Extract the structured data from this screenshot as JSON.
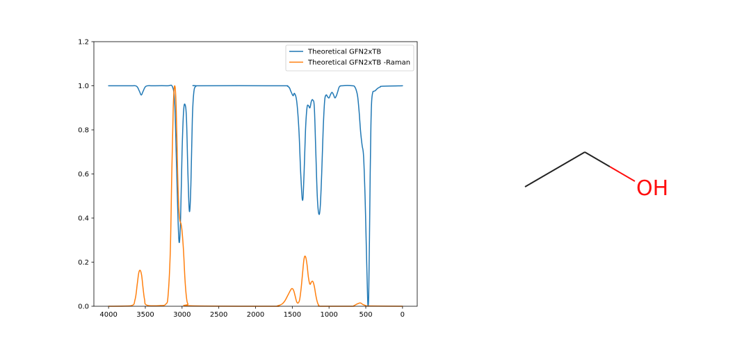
{
  "chart_data": {
    "type": "line",
    "title": "",
    "xlabel": "",
    "ylabel": "",
    "xlim": [
      4200,
      -200
    ],
    "ylim": [
      0,
      1.2
    ],
    "x_inverted": true,
    "x_ticks": [
      4000,
      3500,
      3000,
      2500,
      2000,
      1500,
      1000,
      500,
      0
    ],
    "x_tick_labels": [
      "4000",
      "3500",
      "3000",
      "2500",
      "2000",
      "1500",
      "1000",
      "500",
      "0"
    ],
    "y_ticks": [
      0.0,
      0.2,
      0.4,
      0.6,
      0.8,
      1.0,
      1.2
    ],
    "y_tick_labels": [
      "0.0",
      "0.2",
      "0.4",
      "0.6",
      "0.8",
      "1.0",
      "1.2"
    ],
    "grid": false,
    "legend": {
      "placement": "top-right"
    },
    "series": [
      {
        "name": "Theoretical GFN2xTB",
        "color": "#1f77b4",
        "points": [
          [
            4000,
            1.0
          ],
          [
            3700,
            1.0
          ],
          [
            3620,
            0.998
          ],
          [
            3580,
            0.975
          ],
          [
            3555,
            0.958
          ],
          [
            3530,
            0.975
          ],
          [
            3490,
            0.998
          ],
          [
            3400,
            1.0
          ],
          [
            3200,
            1.0
          ],
          [
            3130,
            0.995
          ],
          [
            3100,
            0.92
          ],
          [
            3080,
            0.7
          ],
          [
            3060,
            0.45
          ],
          [
            3040,
            0.29
          ],
          [
            3020,
            0.4
          ],
          [
            3000,
            0.7
          ],
          [
            2980,
            0.88
          ],
          [
            2960,
            0.915
          ],
          [
            2940,
            0.85
          ],
          [
            2920,
            0.6
          ],
          [
            2900,
            0.43
          ],
          [
            2880,
            0.55
          ],
          [
            2860,
            0.85
          ],
          [
            2840,
            0.97
          ],
          [
            2810,
            0.998
          ],
          [
            2750,
            1.0
          ],
          [
            1700,
            1.0
          ],
          [
            1560,
            0.997
          ],
          [
            1520,
            0.975
          ],
          [
            1490,
            0.955
          ],
          [
            1470,
            0.965
          ],
          [
            1440,
            0.93
          ],
          [
            1410,
            0.8
          ],
          [
            1385,
            0.6
          ],
          [
            1360,
            0.48
          ],
          [
            1340,
            0.6
          ],
          [
            1320,
            0.8
          ],
          [
            1300,
            0.9
          ],
          [
            1280,
            0.91
          ],
          [
            1260,
            0.9
          ],
          [
            1240,
            0.93
          ],
          [
            1220,
            0.935
          ],
          [
            1200,
            0.9
          ],
          [
            1180,
            0.7
          ],
          [
            1160,
            0.5
          ],
          [
            1140,
            0.42
          ],
          [
            1120,
            0.45
          ],
          [
            1100,
            0.6
          ],
          [
            1080,
            0.8
          ],
          [
            1060,
            0.93
          ],
          [
            1040,
            0.958
          ],
          [
            1020,
            0.95
          ],
          [
            1000,
            0.945
          ],
          [
            980,
            0.96
          ],
          [
            960,
            0.97
          ],
          [
            940,
            0.96
          ],
          [
            920,
            0.945
          ],
          [
            900,
            0.955
          ],
          [
            880,
            0.975
          ],
          [
            860,
            0.995
          ],
          [
            820,
            1.0
          ],
          [
            680,
            1.0
          ],
          [
            650,
            0.995
          ],
          [
            630,
            0.98
          ],
          [
            610,
            0.95
          ],
          [
            590,
            0.88
          ],
          [
            570,
            0.79
          ],
          [
            550,
            0.73
          ],
          [
            530,
            0.68
          ],
          [
            510,
            0.5
          ],
          [
            495,
            0.3
          ],
          [
            480,
            0.1
          ],
          [
            470,
            0.0
          ],
          [
            460,
            0.05
          ],
          [
            450,
            0.3
          ],
          [
            440,
            0.6
          ],
          [
            430,
            0.82
          ],
          [
            420,
            0.93
          ],
          [
            405,
            0.97
          ],
          [
            390,
            0.975
          ],
          [
            370,
            0.978
          ],
          [
            350,
            0.985
          ],
          [
            330,
            0.99
          ],
          [
            300,
            0.995
          ],
          [
            270,
            0.998
          ],
          [
            0,
            1.0
          ]
        ]
      },
      {
        "name": "Theoretical GFN2xTB -Raman",
        "color": "#ff7f0e",
        "points": [
          [
            4000,
            0.0
          ],
          [
            3700,
            0.002
          ],
          [
            3640,
            0.03
          ],
          [
            3610,
            0.1
          ],
          [
            3590,
            0.15
          ],
          [
            3570,
            0.163
          ],
          [
            3550,
            0.14
          ],
          [
            3530,
            0.08
          ],
          [
            3510,
            0.03
          ],
          [
            3480,
            0.005
          ],
          [
            3300,
            0.003
          ],
          [
            3220,
            0.01
          ],
          [
            3190,
            0.05
          ],
          [
            3160,
            0.25
          ],
          [
            3140,
            0.6
          ],
          [
            3120,
            0.9
          ],
          [
            3100,
            1.0
          ],
          [
            3080,
            0.9
          ],
          [
            3060,
            0.6
          ],
          [
            3045,
            0.45
          ],
          [
            3030,
            0.39
          ],
          [
            3015,
            0.375
          ],
          [
            3000,
            0.34
          ],
          [
            2980,
            0.25
          ],
          [
            2960,
            0.12
          ],
          [
            2940,
            0.04
          ],
          [
            2920,
            0.01
          ],
          [
            2880,
            0.002
          ],
          [
            1800,
            0.0
          ],
          [
            1700,
            0.002
          ],
          [
            1640,
            0.01
          ],
          [
            1600,
            0.025
          ],
          [
            1560,
            0.05
          ],
          [
            1520,
            0.075
          ],
          [
            1500,
            0.08
          ],
          [
            1480,
            0.07
          ],
          [
            1460,
            0.045
          ],
          [
            1440,
            0.02
          ],
          [
            1420,
            0.015
          ],
          [
            1400,
            0.03
          ],
          [
            1380,
            0.08
          ],
          [
            1360,
            0.15
          ],
          [
            1340,
            0.215
          ],
          [
            1320,
            0.225
          ],
          [
            1300,
            0.19
          ],
          [
            1280,
            0.13
          ],
          [
            1260,
            0.1
          ],
          [
            1240,
            0.11
          ],
          [
            1220,
            0.112
          ],
          [
            1200,
            0.09
          ],
          [
            1180,
            0.05
          ],
          [
            1160,
            0.02
          ],
          [
            1140,
            0.005
          ],
          [
            1100,
            0.0
          ],
          [
            700,
            0.0
          ],
          [
            660,
            0.003
          ],
          [
            620,
            0.01
          ],
          [
            580,
            0.015
          ],
          [
            560,
            0.013
          ],
          [
            540,
            0.008
          ],
          [
            500,
            0.003
          ],
          [
            450,
            0.001
          ],
          [
            0,
            0.0
          ]
        ]
      }
    ]
  },
  "molecule": {
    "atom_label": "OH",
    "bond_color": "#222222",
    "heteroatom_color": "#ff0d0d"
  }
}
